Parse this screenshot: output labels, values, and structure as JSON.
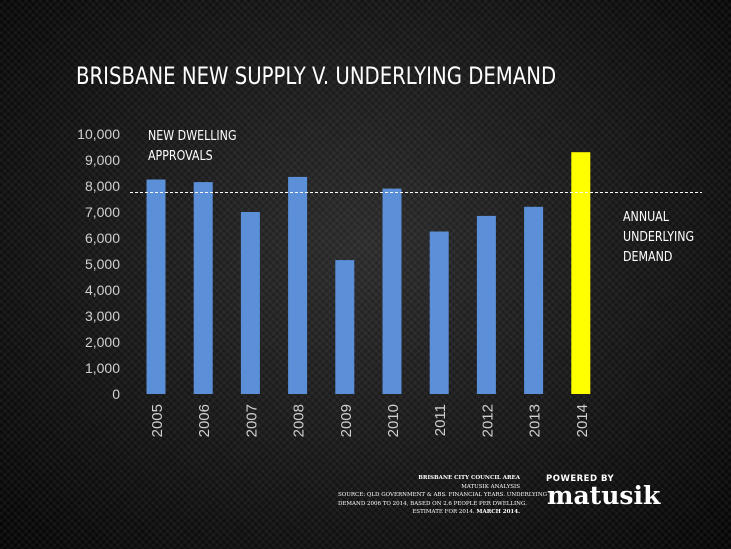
{
  "slide": {
    "title": "BRISBANE  NEW  SUPPLY V. UNDERLYING  DEMAND",
    "series_label_lines": [
      "NEW DWELLING",
      "APPROVALS"
    ],
    "demand_label_lines": [
      "ANNUAL",
      "UNDERLYING",
      "DEMAND"
    ]
  },
  "chart_data": {
    "type": "bar",
    "title": "BRISBANE  NEW  SUPPLY V. UNDERLYING  DEMAND",
    "xlabel": "",
    "ylabel": "",
    "categories": [
      "2005",
      "2006",
      "2007",
      "2008",
      "2009",
      "2010",
      "2011",
      "2012",
      "2013",
      "2014"
    ],
    "series": [
      {
        "name": "NEW DWELLING APPROVALS",
        "values": [
          8250,
          8150,
          7000,
          8350,
          5150,
          7900,
          6250,
          6850,
          7200,
          9300
        ]
      }
    ],
    "bar_colors": [
      "#5b8fd8",
      "#5b8fd8",
      "#5b8fd8",
      "#5b8fd8",
      "#5b8fd8",
      "#5b8fd8",
      "#5b8fd8",
      "#5b8fd8",
      "#5b8fd8",
      "#ffff00"
    ],
    "yticks": [
      0,
      1000,
      2000,
      3000,
      4000,
      5000,
      6000,
      7000,
      8000,
      9000,
      10000
    ],
    "ytick_labels": [
      "0",
      "1,000",
      "2,000",
      "3,000",
      "4,000",
      "5,000",
      "6,000",
      "7,000",
      "8,000",
      "9,000",
      "10,000"
    ],
    "ylim": [
      0,
      10000
    ],
    "reference_line": {
      "name": "ANNUAL UNDERLYING DEMAND",
      "value": 7750,
      "style": "dashed",
      "color": "#ffffff"
    },
    "grid": false,
    "legend": "none"
  },
  "source": {
    "title": "BRISBANE CITY COUNCIL AREA",
    "lines": [
      "MATUSIK ANALYSIS",
      "SOURCE: QLD GOVERNMENT & ABS. FINANCIAL YEARS. UNDERLYING",
      "DEMAND 2006 TO 2014, BASED ON 2.6 PEOPLE PER DWELLING.",
      "ESTIMATE FOR 2014."
    ],
    "date": "MARCH 2014."
  },
  "logo": {
    "top": "POWERED BY",
    "main": "matusik"
  },
  "colors": {
    "bar": "#5b8fd8",
    "highlight": "#ffff00",
    "text": "#ffffff",
    "axis_text": "#d0d0d0"
  }
}
